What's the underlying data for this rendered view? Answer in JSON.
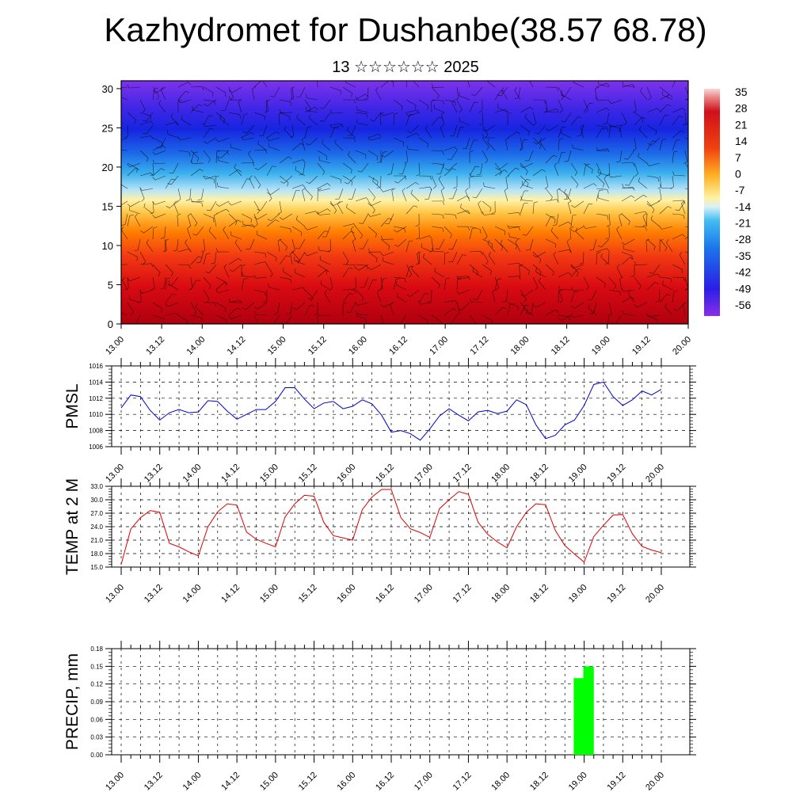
{
  "header": {
    "title": "Kazhydromet for Dushanbe(38.57 68.78)",
    "subtitle": "13 ☆☆☆☆☆☆ 2025"
  },
  "chart_data": [
    {
      "type": "heatmap",
      "name": "vertical-temperature-cross-section",
      "title": "",
      "xlabel": "",
      "ylabel": "",
      "x_ticks": [
        "13.00",
        "13.12",
        "14.00",
        "14.12",
        "15.00",
        "15.12",
        "16.00",
        "16.12",
        "17.00",
        "17.12",
        "18.00",
        "18.12",
        "19.00",
        "19.12",
        "20.00"
      ],
      "y_ticks": [
        0,
        5,
        10,
        15,
        20,
        25,
        30
      ],
      "ylim": [
        0,
        31
      ],
      "colorbar_labels": [
        35,
        28,
        21,
        14,
        7,
        0,
        -7,
        -14,
        -21,
        -28,
        -35,
        -42,
        -49,
        -56
      ],
      "colorbar_range": [
        -63,
        42
      ],
      "overlay": "wind barbs",
      "colors": {
        "hot": "#c8001e",
        "warm": "#ff7a00",
        "mild": "#ffe27a",
        "cool": "#45b6f0",
        "cold": "#1a2ee6",
        "coldest": "#7a2ee8"
      }
    },
    {
      "type": "line",
      "name": "pmsl",
      "ylabel": "PMSL",
      "ylim": [
        1006,
        1016
      ],
      "y_ticks": [
        1006,
        1008,
        1010,
        1012,
        1014,
        1016
      ],
      "x_ticks": [
        "13.00",
        "13.12",
        "14.00",
        "14.12",
        "15.00",
        "15.12",
        "16.00",
        "16.12",
        "17.00",
        "17.12",
        "18.00",
        "18.12",
        "19.00",
        "19.12",
        "20.00"
      ],
      "color": "#0000cc",
      "values": [
        1010.8,
        1012.4,
        1012.2,
        1010.5,
        1009.3,
        1010.2,
        1010.6,
        1010.2,
        1010.3,
        1011.7,
        1011.6,
        1010.4,
        1009.4,
        1010.0,
        1010.6,
        1010.6,
        1011.6,
        1013.3,
        1013.3,
        1011.9,
        1010.7,
        1011.4,
        1011.6,
        1010.7,
        1011.0,
        1011.8,
        1011.3,
        1009.9,
        1007.8,
        1008.0,
        1007.6,
        1006.8,
        1008.2,
        1009.8,
        1010.7,
        1009.9,
        1009.2,
        1010.3,
        1010.5,
        1010.1,
        1010.4,
        1011.8,
        1011.2,
        1008.7,
        1007.0,
        1007.4,
        1008.7,
        1009.3,
        1011.1,
        1013.7,
        1014.0,
        1012.2,
        1011.1,
        1011.8,
        1012.9,
        1012.4,
        1013.1
      ]
    },
    {
      "type": "line",
      "name": "temp-2m",
      "ylabel": "TEMP at 2 M",
      "ylim": [
        15.0,
        33.0
      ],
      "y_ticks": [
        "15.0",
        "18.0",
        "21.0",
        "24.0",
        "27.0",
        "30.0",
        "33.0"
      ],
      "x_ticks": [
        "13.00",
        "13.12",
        "14.00",
        "14.12",
        "15.00",
        "15.12",
        "16.00",
        "16.12",
        "17.00",
        "17.12",
        "18.00",
        "18.12",
        "19.00",
        "19.12",
        "20.00"
      ],
      "color": "#dd0000",
      "values": [
        15.6,
        23.5,
        26.0,
        27.6,
        27.2,
        20.3,
        19.5,
        18.4,
        17.5,
        24.0,
        27.3,
        29.1,
        28.8,
        22.8,
        21.2,
        20.3,
        19.5,
        26.2,
        29.1,
        31.0,
        30.8,
        25.0,
        22.0,
        21.5,
        21.0,
        27.8,
        30.6,
        32.3,
        32.3,
        26.0,
        23.5,
        22.7,
        21.6,
        28.0,
        30.0,
        31.8,
        31.2,
        25.0,
        22.3,
        20.6,
        19.3,
        24.0,
        27.2,
        29.1,
        28.9,
        23.2,
        19.8,
        17.9,
        16.1,
        21.8,
        24.3,
        26.6,
        26.7,
        22.4,
        19.6,
        18.8,
        18.2
      ]
    },
    {
      "type": "bar",
      "name": "precip",
      "ylabel": "PRECIP, mm",
      "ylim": [
        0,
        0.18
      ],
      "y_ticks": [
        "0.00",
        "0.03",
        "0.06",
        "0.09",
        "0.12",
        "0.15",
        "0.18"
      ],
      "x_ticks": [
        "13.00",
        "13.12",
        "14.00",
        "14.12",
        "15.00",
        "15.12",
        "16.00",
        "16.12",
        "17.00",
        "17.12",
        "18.00",
        "18.12",
        "19.00",
        "19.12",
        "20.00"
      ],
      "color": "#00ff00",
      "bars": [
        {
          "x_hours": 141,
          "value": 0.13
        },
        {
          "x_hours": 144,
          "value": 0.15
        }
      ]
    }
  ]
}
